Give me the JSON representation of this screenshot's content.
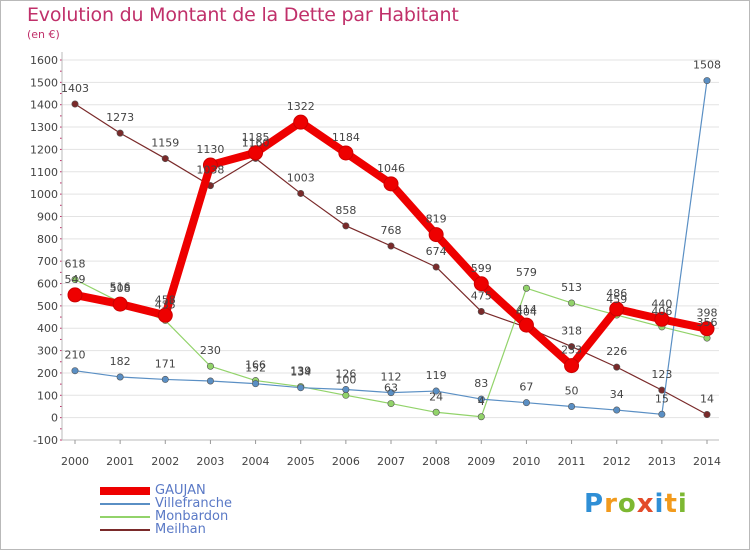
{
  "title": "Evolution du Montant de la Dette par Habitant",
  "unit_label": "(en €)",
  "logo_text": "Proxiti",
  "chart_data": {
    "type": "line",
    "title": "Evolution du Montant de la Dette par Habitant",
    "subtitle": "(en €)",
    "xlabel": "",
    "ylabel": "",
    "x": [
      2000,
      2001,
      2002,
      2003,
      2004,
      2005,
      2006,
      2007,
      2008,
      2009,
      2010,
      2011,
      2012,
      2013,
      2014
    ],
    "ylim": [
      -100,
      1600
    ],
    "yticks": [
      -100,
      0,
      100,
      200,
      300,
      400,
      500,
      600,
      700,
      800,
      900,
      1000,
      1100,
      1200,
      1300,
      1400,
      1500,
      1600
    ],
    "grid": "horizontal",
    "legend_position": "bottom-left",
    "series": [
      {
        "name": "GAUJAN",
        "color": "#ee0000",
        "values": [
          549,
          508,
          458,
          1130,
          1185,
          1322,
          1184,
          1046,
          819,
          599,
          414,
          233,
          486,
          440,
          398
        ],
        "labels": [
          "549",
          "508",
          "458",
          "1130",
          "1185",
          "1322",
          "1184",
          "1046",
          "819",
          "599",
          "414",
          "233",
          "486",
          "440",
          "398"
        ]
      },
      {
        "name": "Villefranche",
        "color": "#5a8fc4",
        "values": [
          210,
          182,
          171,
          164,
          152,
          134,
          126,
          112,
          119,
          83,
          67,
          50,
          34,
          15,
          1508
        ],
        "labels": [
          "210",
          "182",
          "171",
          "",
          "152",
          "134",
          "126",
          "112",
          "119",
          "83",
          "67",
          "50",
          "34",
          "15",
          "1508"
        ]
      },
      {
        "name": "Monbardon",
        "color": "#92d36a",
        "values": [
          618,
          516,
          435,
          230,
          166,
          139,
          100,
          63,
          24,
          4,
          579,
          513,
          459,
          406,
          356
        ],
        "labels": [
          "618",
          "516",
          "435",
          "230",
          "166",
          "139",
          "100",
          "63",
          "24",
          "4",
          "579",
          "513",
          "459",
          "406",
          "356"
        ]
      },
      {
        "name": "Meilhan",
        "color": "#7a2a2a",
        "values": [
          1403,
          1273,
          1159,
          1038,
          1160,
          1003,
          858,
          768,
          674,
          475,
          404,
          318,
          226,
          123,
          14
        ],
        "labels": [
          "1403",
          "1273",
          "1159",
          "1038",
          "1160",
          "1003",
          "858",
          "768",
          "674",
          "475",
          "404",
          "318",
          "226",
          "123",
          "14"
        ]
      }
    ]
  }
}
